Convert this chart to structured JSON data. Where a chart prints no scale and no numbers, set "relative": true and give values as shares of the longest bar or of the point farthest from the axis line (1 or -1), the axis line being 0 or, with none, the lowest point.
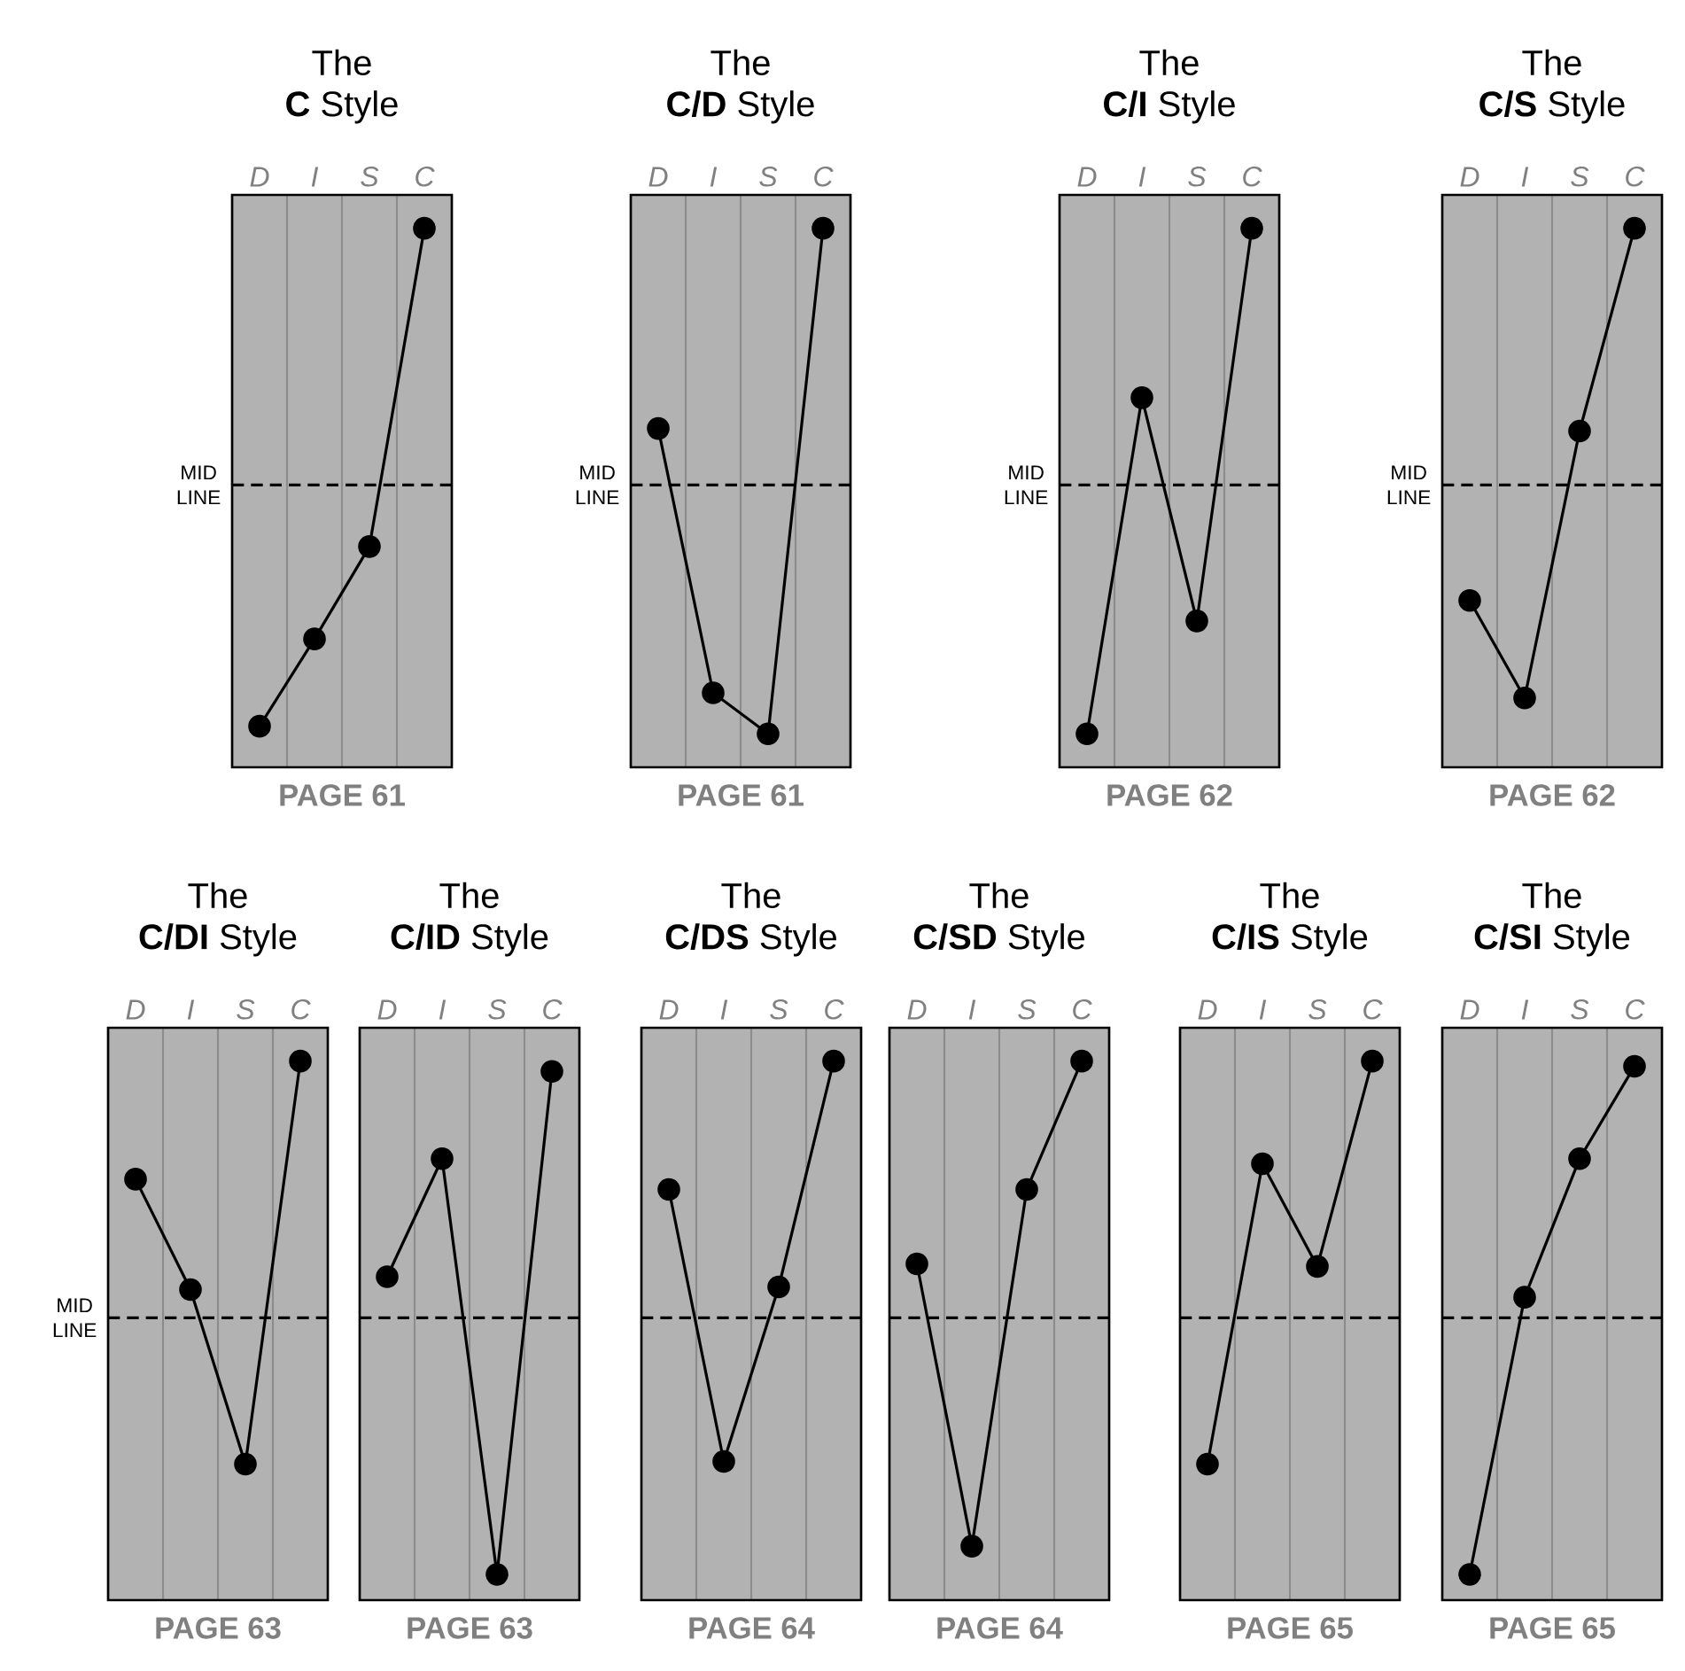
{
  "chart_data": [
    {
      "type": "line",
      "title": "The",
      "subtitle": "**C** Style",
      "categories": [
        "D",
        "I",
        "S",
        "C"
      ],
      "values": [
        -0.94,
        -0.6,
        -0.24,
        1
      ],
      "relative": true,
      "color": "#000000",
      "marker": "circle",
      "grid": "x",
      "ref_lines": [
        {
          "axis": "y",
          "value": 0,
          "label": "MID LINE"
        }
      ],
      "annotations": [
        "PAGE 61"
      ]
    },
    {
      "type": "line",
      "title": "The",
      "subtitle": "**C/D** Style",
      "categories": [
        "D",
        "I",
        "S",
        "C"
      ],
      "values": [
        0.22,
        -0.81,
        -0.97,
        1
      ],
      "relative": true,
      "color": "#000000",
      "marker": "circle",
      "grid": "x",
      "ref_lines": [
        {
          "axis": "y",
          "value": 0,
          "label": "MID LINE"
        }
      ],
      "annotations": [
        "PAGE 61"
      ]
    },
    {
      "type": "line",
      "title": "The",
      "subtitle": "**C/I** Style",
      "categories": [
        "D",
        "I",
        "S",
        "C"
      ],
      "values": [
        -0.97,
        0.34,
        -0.53,
        1
      ],
      "relative": true,
      "color": "#000000",
      "marker": "circle",
      "grid": "x",
      "ref_lines": [
        {
          "axis": "y",
          "value": 0,
          "label": "MID LINE"
        }
      ],
      "annotations": [
        "PAGE 62"
      ]
    },
    {
      "type": "line",
      "title": "The",
      "subtitle": "**C/S** Style",
      "categories": [
        "D",
        "I",
        "S",
        "C"
      ],
      "values": [
        -0.45,
        -0.83,
        0.21,
        1
      ],
      "relative": true,
      "color": "#000000",
      "marker": "circle",
      "grid": "x",
      "ref_lines": [
        {
          "axis": "y",
          "value": 0,
          "label": "MID LINE"
        }
      ],
      "annotations": [
        "PAGE 62"
      ]
    },
    {
      "type": "line",
      "title": "The",
      "subtitle": "**C/DI** Style",
      "categories": [
        "D",
        "I",
        "S",
        "C"
      ],
      "values": [
        0.54,
        0.11,
        -0.57,
        1
      ],
      "relative": true,
      "color": "#000000",
      "marker": "circle",
      "grid": "x",
      "ref_lines": [
        {
          "axis": "y",
          "value": 0,
          "label": "MID LINE"
        }
      ],
      "annotations": [
        "PAGE 63"
      ]
    },
    {
      "type": "line",
      "title": "The",
      "subtitle": "**C/ID** Style",
      "categories": [
        "D",
        "I",
        "S",
        "C"
      ],
      "values": [
        0.16,
        0.62,
        -1,
        0.96
      ],
      "relative": true,
      "color": "#000000",
      "marker": "circle",
      "grid": "x",
      "ref_lines": [
        {
          "axis": "y",
          "value": 0
        }
      ],
      "annotations": [
        "PAGE 63"
      ]
    },
    {
      "type": "line",
      "title": "The",
      "subtitle": "**C/DS** Style",
      "categories": [
        "D",
        "I",
        "S",
        "C"
      ],
      "values": [
        0.5,
        -0.56,
        0.12,
        1
      ],
      "relative": true,
      "color": "#000000",
      "marker": "circle",
      "grid": "x",
      "ref_lines": [
        {
          "axis": "y",
          "value": 0
        }
      ],
      "annotations": [
        "PAGE 64"
      ]
    },
    {
      "type": "line",
      "title": "The",
      "subtitle": "**C/SD** Style",
      "categories": [
        "D",
        "I",
        "S",
        "C"
      ],
      "values": [
        0.21,
        -0.89,
        0.5,
        1
      ],
      "relative": true,
      "color": "#000000",
      "marker": "circle",
      "grid": "x",
      "ref_lines": [
        {
          "axis": "y",
          "value": 0
        }
      ],
      "annotations": [
        "PAGE 64"
      ]
    },
    {
      "type": "line",
      "title": "The",
      "subtitle": "**C/IS** Style",
      "categories": [
        "D",
        "I",
        "S",
        "C"
      ],
      "values": [
        -0.57,
        0.6,
        0.2,
        1
      ],
      "relative": true,
      "color": "#000000",
      "marker": "circle",
      "grid": "x",
      "ref_lines": [
        {
          "axis": "y",
          "value": 0
        }
      ],
      "annotations": [
        "PAGE 65"
      ]
    },
    {
      "type": "line",
      "title": "The",
      "subtitle": "**C/SI** Style",
      "categories": [
        "D",
        "I",
        "S",
        "C"
      ],
      "values": [
        -1,
        0.08,
        0.62,
        0.98
      ],
      "relative": true,
      "color": "#000000",
      "marker": "circle",
      "grid": "x",
      "ref_lines": [
        {
          "axis": "y",
          "value": 0
        }
      ],
      "annotations": [
        "PAGE 65"
      ]
    }
  ]
}
